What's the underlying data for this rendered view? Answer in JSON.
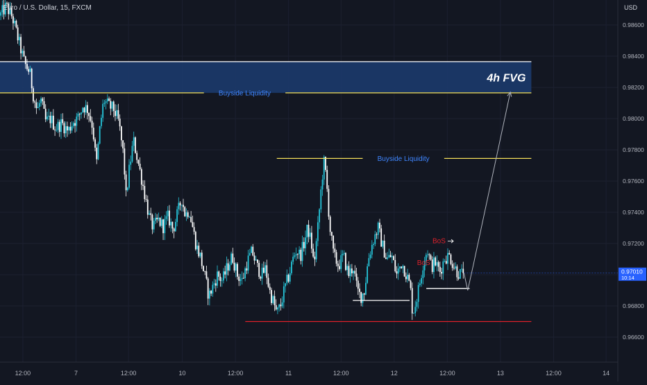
{
  "header": {
    "symbol_title": "Euro / U.S. Dollar, 15, FXCM",
    "currency": "USD"
  },
  "colors": {
    "background": "#131722",
    "candle_up": "#26c6da",
    "candle_down": "#ffffff",
    "buyside": "#f5e05a",
    "support": "#e0202a",
    "fvg_fill": "#1c3a6b",
    "fvg_border": "#ffffff",
    "bos": "#e0202a",
    "price_tag": "#2962ff"
  },
  "chart_data": {
    "type": "candlestick",
    "title": "",
    "xlabel": "",
    "ylabel": "",
    "ylim": [
      0.9644,
      0.9876
    ],
    "yticks": [
      0.966,
      0.968,
      0.97,
      0.972,
      0.974,
      0.976,
      0.978,
      0.98,
      0.982,
      0.984,
      0.986
    ],
    "ytick_labels": [
      "0.96600",
      "0.96800",
      "0.97000",
      "0.97200",
      "0.97400",
      "0.97600",
      "0.97800",
      "0.98000",
      "0.98200",
      "0.98400",
      "0.98600"
    ],
    "xticks": [
      {
        "label": "12:00",
        "t": 0.037
      },
      {
        "label": "7",
        "t": 0.123
      },
      {
        "label": "12:00",
        "t": 0.208
      },
      {
        "label": "10",
        "t": 0.295
      },
      {
        "label": "12:00",
        "t": 0.381
      },
      {
        "label": "11",
        "t": 0.467
      },
      {
        "label": "12:00",
        "t": 0.552
      },
      {
        "label": "12",
        "t": 0.638
      },
      {
        "label": "12:00",
        "t": 0.724
      },
      {
        "label": "13",
        "t": 0.81
      },
      {
        "label": "12:00",
        "t": 0.896
      },
      {
        "label": "14",
        "t": 0.981
      }
    ],
    "price_path": [
      [
        0.0,
        0.9866
      ],
      [
        0.01,
        0.9872
      ],
      [
        0.02,
        0.9865
      ],
      [
        0.03,
        0.985
      ],
      [
        0.04,
        0.9835
      ],
      [
        0.048,
        0.983
      ],
      [
        0.054,
        0.9815
      ],
      [
        0.06,
        0.9805
      ],
      [
        0.066,
        0.9812
      ],
      [
        0.074,
        0.9798
      ],
      [
        0.082,
        0.98
      ],
      [
        0.09,
        0.9794
      ],
      [
        0.1,
        0.9797
      ],
      [
        0.11,
        0.9792
      ],
      [
        0.118,
        0.9798
      ],
      [
        0.126,
        0.98
      ],
      [
        0.134,
        0.9808
      ],
      [
        0.142,
        0.9806
      ],
      [
        0.15,
        0.9795
      ],
      [
        0.156,
        0.977
      ],
      [
        0.162,
        0.9795
      ],
      [
        0.168,
        0.9812
      ],
      [
        0.176,
        0.9808
      ],
      [
        0.184,
        0.9806
      ],
      [
        0.192,
        0.9798
      ],
      [
        0.2,
        0.9776
      ],
      [
        0.204,
        0.975
      ],
      [
        0.21,
        0.977
      ],
      [
        0.216,
        0.9786
      ],
      [
        0.222,
        0.9775
      ],
      [
        0.23,
        0.976
      ],
      [
        0.236,
        0.9748
      ],
      [
        0.242,
        0.9736
      ],
      [
        0.248,
        0.973
      ],
      [
        0.256,
        0.9735
      ],
      [
        0.264,
        0.9731
      ],
      [
        0.272,
        0.9737
      ],
      [
        0.28,
        0.9729
      ],
      [
        0.288,
        0.974
      ],
      [
        0.294,
        0.9749
      ],
      [
        0.3,
        0.9738
      ],
      [
        0.306,
        0.9742
      ],
      [
        0.312,
        0.973
      ],
      [
        0.318,
        0.9718
      ],
      [
        0.324,
        0.9712
      ],
      [
        0.332,
        0.9698
      ],
      [
        0.338,
        0.9686
      ],
      [
        0.344,
        0.9692
      ],
      [
        0.352,
        0.97
      ],
      [
        0.36,
        0.9696
      ],
      [
        0.368,
        0.9705
      ],
      [
        0.376,
        0.9712
      ],
      [
        0.384,
        0.97
      ],
      [
        0.392,
        0.9696
      ],
      [
        0.4,
        0.9708
      ],
      [
        0.408,
        0.9715
      ],
      [
        0.416,
        0.9705
      ],
      [
        0.424,
        0.97
      ],
      [
        0.43,
        0.9704
      ],
      [
        0.436,
        0.969
      ],
      [
        0.442,
        0.9683
      ],
      [
        0.448,
        0.9675
      ],
      [
        0.454,
        0.968
      ],
      [
        0.46,
        0.969
      ],
      [
        0.468,
        0.97
      ],
      [
        0.474,
        0.971
      ],
      [
        0.48,
        0.9716
      ],
      [
        0.486,
        0.9712
      ],
      [
        0.492,
        0.972
      ],
      [
        0.498,
        0.973
      ],
      [
        0.504,
        0.972
      ],
      [
        0.508,
        0.9706
      ],
      [
        0.514,
        0.9728
      ],
      [
        0.52,
        0.9756
      ],
      [
        0.524,
        0.9773
      ],
      [
        0.528,
        0.9762
      ],
      [
        0.534,
        0.973
      ],
      [
        0.54,
        0.9712
      ],
      [
        0.548,
        0.9706
      ],
      [
        0.556,
        0.9712
      ],
      [
        0.564,
        0.97
      ],
      [
        0.572,
        0.9705
      ],
      [
        0.578,
        0.969
      ],
      [
        0.584,
        0.9686
      ],
      [
        0.59,
        0.969
      ],
      [
        0.596,
        0.971
      ],
      [
        0.604,
        0.9722
      ],
      [
        0.612,
        0.973
      ],
      [
        0.618,
        0.972
      ],
      [
        0.626,
        0.971
      ],
      [
        0.634,
        0.9712
      ],
      [
        0.642,
        0.97
      ],
      [
        0.65,
        0.9708
      ],
      [
        0.658,
        0.97
      ],
      [
        0.664,
        0.9692
      ],
      [
        0.668,
        0.9675
      ],
      [
        0.674,
        0.9684
      ],
      [
        0.68,
        0.9696
      ],
      [
        0.686,
        0.971
      ],
      [
        0.692,
        0.9716
      ],
      [
        0.698,
        0.9705
      ],
      [
        0.704,
        0.9708
      ],
      [
        0.712,
        0.9702
      ],
      [
        0.72,
        0.9711
      ],
      [
        0.728,
        0.9712
      ],
      [
        0.734,
        0.9706
      ],
      [
        0.74,
        0.9702
      ],
      [
        0.746,
        0.97
      ],
      [
        0.751,
        0.9701
      ]
    ],
    "projection": [
      [
        0.751,
        0.9701
      ],
      [
        0.757,
        0.969
      ],
      [
        0.766,
        0.9706
      ],
      [
        0.826,
        0.9817
      ]
    ],
    "current_price": {
      "label": "0.97010",
      "countdown": "10:14",
      "value": 0.9701
    },
    "zones": [
      {
        "label": "4h FVG",
        "y_top": 0.98365,
        "y_bottom": 0.98165,
        "x_start": 0.0,
        "x_end": 0.86
      }
    ],
    "levels": [
      {
        "label": "Buyside Liquidity",
        "price": 0.98165,
        "x_start": 0.0,
        "x_end": 0.86,
        "label_t": 0.396,
        "color": "buyside"
      },
      {
        "label": "Buyside Liquidity",
        "price": 0.97745,
        "x_start": 0.448,
        "x_end": 0.86,
        "label_t": 0.653,
        "color": "buyside"
      },
      {
        "price": 0.967,
        "x_start": 0.397,
        "x_end": 0.86,
        "color": "support"
      },
      {
        "price": 0.96835,
        "x_start": 0.571,
        "x_end": 0.663,
        "color": "white"
      },
      {
        "price": 0.96912,
        "x_start": 0.69,
        "x_end": 0.76,
        "color": "white"
      }
    ],
    "bos_labels": [
      {
        "label": "BoS",
        "t": 0.7,
        "price": 0.97215,
        "arrow": true
      },
      {
        "label": "BoS",
        "t": 0.675,
        "price": 0.97075,
        "arrow": false
      }
    ]
  }
}
